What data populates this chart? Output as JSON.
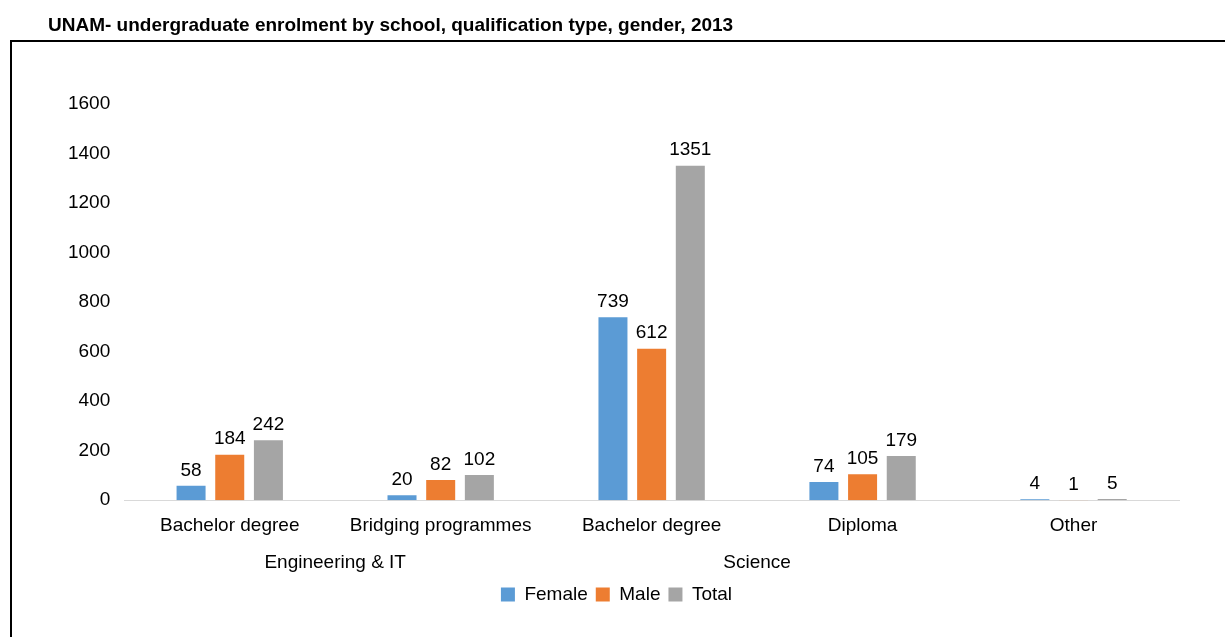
{
  "chart_data": {
    "type": "bar",
    "title": "UNAM- undergraduate enrolment by school, qualification type, gender, 2013",
    "categories": [
      "Bachelor degree",
      "Bridging programmes",
      "Bachelor degree",
      "Diploma",
      "Other"
    ],
    "series": [
      {
        "name": "Female",
        "color": "#5b9bd5",
        "values": [
          58,
          20,
          739,
          74,
          4
        ]
      },
      {
        "name": "Male",
        "color": "#ed7d31",
        "values": [
          184,
          82,
          612,
          105,
          1
        ]
      },
      {
        "name": "Total",
        "color": "#a5a5a5",
        "values": [
          242,
          102,
          1351,
          179,
          5
        ]
      }
    ],
    "ylim": [
      0,
      1600
    ],
    "yticks": [
      0,
      200,
      400,
      600,
      800,
      1000,
      1200,
      1400,
      1600
    ],
    "grid": false,
    "legend": "bottom",
    "data_labels": true,
    "annotations": [
      "Engineering & IT",
      "Science"
    ]
  }
}
